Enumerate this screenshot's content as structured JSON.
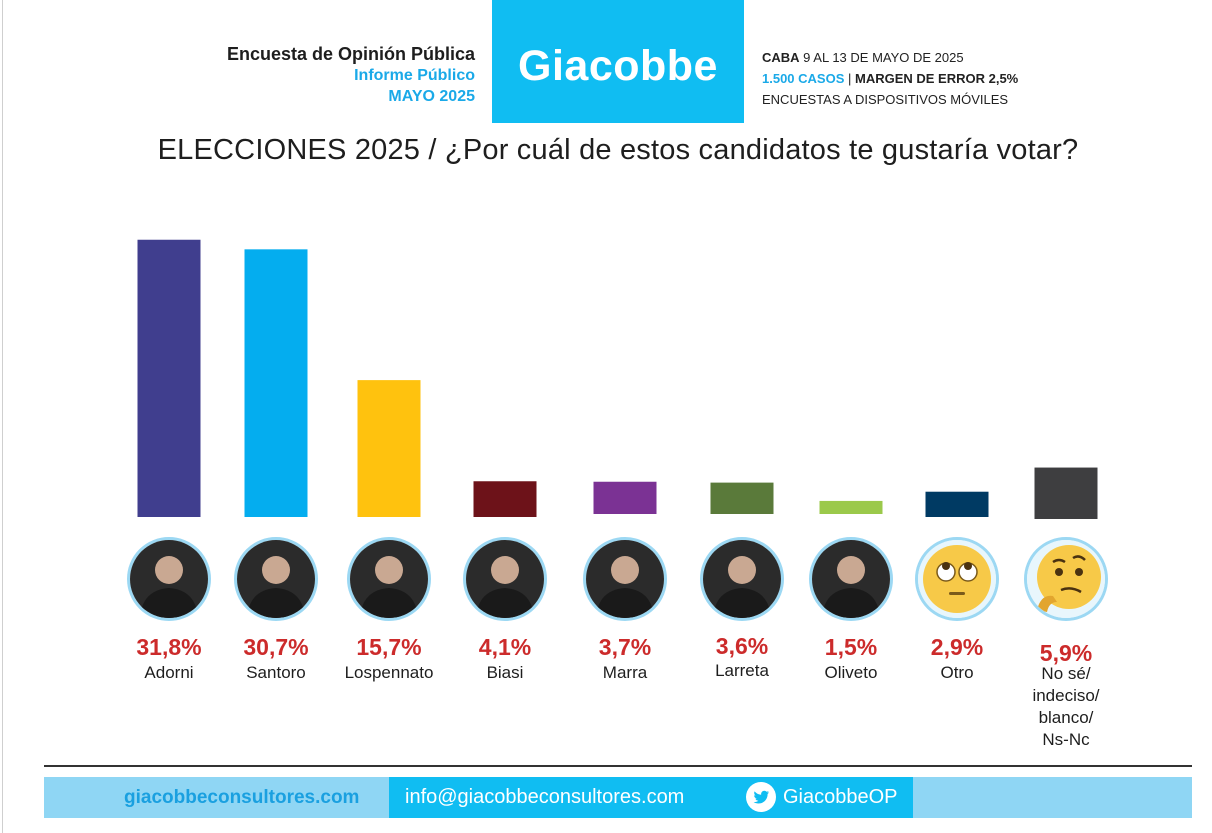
{
  "header": {
    "line1": "Encuesta de Opinión Pública",
    "line2": "Informe Público",
    "line3": "MAYO 2025",
    "logo": "Giacobbe",
    "meta1_bold": "CABA",
    "meta1_rest": " 9 AL 13 DE MAYO DE 2025",
    "meta2_cases": "1.500 CASOS",
    "meta2_sep": " | ",
    "meta2_margin": "MARGEN DE ERROR 2,5%",
    "meta3": "ENCUESTAS A DISPOSITIVOS MÓVILES"
  },
  "chart_data": {
    "type": "bar",
    "title": "ELECCIONES 2025 / ¿Por cuál de estos candidatos te gustaría votar?",
    "categories": [
      "Adorni",
      "Santoro",
      "Lospennato",
      "Biasi",
      "Marra",
      "Larreta",
      "Oliveto",
      "Otro",
      "No sé/ indeciso/ blanco/ Ns-Nc"
    ],
    "values": [
      31.8,
      30.7,
      15.7,
      4.1,
      3.7,
      3.6,
      1.5,
      2.9,
      5.9
    ],
    "labels": [
      "31,8%",
      "30,7%",
      "15,7%",
      "4,1%",
      "3,7%",
      "3,6%",
      "1,5%",
      "2,9%",
      "5,9%"
    ],
    "name_lines": [
      [
        "Adorni"
      ],
      [
        "Santoro"
      ],
      [
        "Lospennato"
      ],
      [
        "Biasi"
      ],
      [
        "Marra"
      ],
      [
        "Larreta"
      ],
      [
        "Oliveto"
      ],
      [
        "Otro"
      ],
      [
        "No sé/",
        "indeciso/",
        "blanco/",
        "Ns-Nc"
      ]
    ],
    "colors": [
      "#403e8e",
      "#04adef",
      "#ffc20e",
      "#6d1219",
      "#7b3294",
      "#5a7a3a",
      "#9bc94b",
      "#003a63",
      "#3e3e40"
    ],
    "icons": [
      "avatar-photo",
      "avatar-photo",
      "avatar-photo",
      "avatar-photo",
      "avatar-photo",
      "avatar-photo",
      "avatar-photo",
      "eye-roll-emoji",
      "thinking-face-emoji"
    ],
    "ylim": [
      0,
      32
    ],
    "grid": false,
    "legend": "none"
  },
  "footer": {
    "site": "giacobbeconsultores.com",
    "email": "info@giacobbeconsultores.com",
    "twitter": "GiacobbeOP"
  }
}
